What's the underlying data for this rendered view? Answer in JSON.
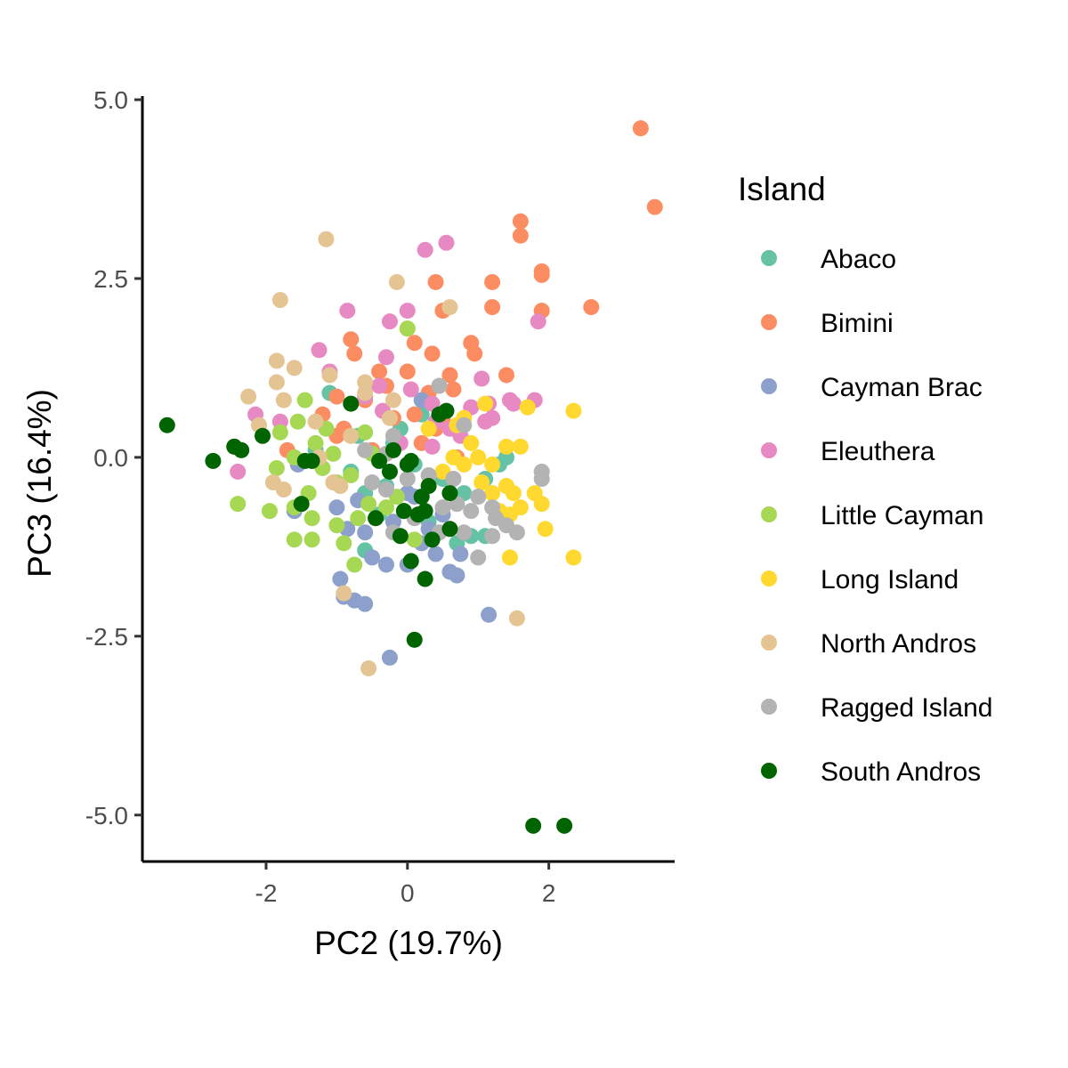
{
  "chart_data": {
    "type": "scatter",
    "title": "",
    "xlabel": "PC2 (19.7%)",
    "ylabel": "PC3 (16.4%)",
    "xlim": [
      -3.75,
      3.78
    ],
    "ylim": [
      -5.65,
      5.05
    ],
    "xticks": [
      -2,
      0,
      2
    ],
    "xtick_labels": [
      "-2",
      "0",
      "2"
    ],
    "yticks": [
      5.0,
      2.5,
      0.0,
      -2.5,
      -5.0
    ],
    "ytick_labels": [
      "5.0",
      "2.5",
      "0.0",
      "-2.5",
      "-5.0"
    ],
    "grid": false,
    "legend": {
      "title": "Island",
      "placement": "right"
    },
    "series": [
      {
        "name": "Abaco",
        "color": "#66C2A5",
        "points": [
          [
            -1.1,
            0.9
          ],
          [
            -0.7,
            0.3
          ],
          [
            -0.5,
            0.1
          ],
          [
            -0.8,
            -0.2
          ],
          [
            -0.3,
            -0.4
          ],
          [
            -0.6,
            -0.5
          ],
          [
            -0.2,
            0.2
          ],
          [
            0.1,
            -0.1
          ],
          [
            0.5,
            -0.3
          ],
          [
            0.7,
            -1.2
          ],
          [
            1.1,
            -0.3
          ],
          [
            1.3,
            -0.1
          ],
          [
            1.4,
            0.0
          ],
          [
            0.9,
            -1.1
          ],
          [
            -0.9,
            0.4
          ],
          [
            -0.4,
            -0.8
          ],
          [
            0.3,
            -0.9
          ],
          [
            -1.3,
            0.1
          ],
          [
            1.1,
            -1.1
          ],
          [
            0.8,
            -0.5
          ],
          [
            -0.1,
            0.4
          ],
          [
            -0.6,
            -1.3
          ],
          [
            0.2,
            0.6
          ]
        ]
      },
      {
        "name": "Bimini",
        "color": "#FC8D62",
        "points": [
          [
            3.3,
            4.6
          ],
          [
            3.5,
            3.5
          ],
          [
            1.6,
            3.3
          ],
          [
            1.6,
            3.1
          ],
          [
            1.9,
            2.6
          ],
          [
            1.9,
            2.55
          ],
          [
            1.2,
            2.45
          ],
          [
            0.4,
            2.45
          ],
          [
            2.6,
            2.1
          ],
          [
            1.2,
            2.1
          ],
          [
            1.9,
            2.05
          ],
          [
            0.5,
            2.05
          ],
          [
            0.0,
            1.8
          ],
          [
            -0.8,
            1.65
          ],
          [
            -0.75,
            1.45
          ],
          [
            0.1,
            1.6
          ],
          [
            0.9,
            1.6
          ],
          [
            0.35,
            1.45
          ],
          [
            0.95,
            1.45
          ],
          [
            -0.4,
            1.2
          ],
          [
            0.0,
            1.2
          ],
          [
            0.6,
            1.15
          ],
          [
            1.4,
            1.15
          ],
          [
            -0.3,
            1.0
          ],
          [
            0.65,
            0.95
          ],
          [
            0.3,
            0.9
          ],
          [
            -0.6,
            0.8
          ],
          [
            -1.2,
            0.6
          ],
          [
            0.1,
            0.6
          ],
          [
            0.5,
            0.55
          ],
          [
            -0.9,
            0.4
          ],
          [
            -1.0,
            0.3
          ],
          [
            0.2,
            0.2
          ],
          [
            -0.5,
            0.1
          ],
          [
            -2.45,
            0.15
          ],
          [
            -1.7,
            0.1
          ],
          [
            0.7,
            0.0
          ],
          [
            -1.0,
            0.85
          ],
          [
            0.4,
            0.4
          ],
          [
            -0.2,
            0.55
          ]
        ]
      },
      {
        "name": "Cayman Brac",
        "color": "#8DA0CB",
        "points": [
          [
            -1.6,
            -0.75
          ],
          [
            -1.55,
            -0.1
          ],
          [
            -0.95,
            -1.7
          ],
          [
            -0.9,
            -1.95
          ],
          [
            -0.75,
            -2.0
          ],
          [
            -0.6,
            -2.05
          ],
          [
            -0.25,
            -2.8
          ],
          [
            1.15,
            -2.2
          ],
          [
            -0.3,
            -1.5
          ],
          [
            0.0,
            -1.5
          ],
          [
            0.4,
            -1.35
          ],
          [
            0.7,
            -1.65
          ],
          [
            0.75,
            -1.35
          ],
          [
            -0.6,
            -1.05
          ],
          [
            -0.2,
            -0.9
          ],
          [
            0.3,
            -1.0
          ],
          [
            -0.7,
            -0.6
          ],
          [
            0.0,
            -0.5
          ],
          [
            0.5,
            -0.8
          ],
          [
            -0.5,
            -1.4
          ],
          [
            0.2,
            -1.2
          ],
          [
            -1.0,
            -0.7
          ],
          [
            0.2,
            0.8
          ],
          [
            0.6,
            -1.6
          ],
          [
            -0.85,
            -1.0
          ],
          [
            0.1,
            -0.55
          ]
        ]
      },
      {
        "name": "Eleuthera",
        "color": "#E78AC3",
        "points": [
          [
            0.25,
            2.9
          ],
          [
            0.55,
            3.0
          ],
          [
            -0.85,
            2.05
          ],
          [
            0.0,
            2.05
          ],
          [
            -0.25,
            1.9
          ],
          [
            1.85,
            1.9
          ],
          [
            -1.25,
            1.5
          ],
          [
            -0.3,
            1.4
          ],
          [
            -1.1,
            1.2
          ],
          [
            -0.4,
            1.0
          ],
          [
            0.05,
            0.95
          ],
          [
            1.05,
            1.1
          ],
          [
            -0.6,
            0.85
          ],
          [
            0.35,
            0.75
          ],
          [
            0.9,
            0.7
          ],
          [
            1.15,
            0.75
          ],
          [
            1.45,
            0.8
          ],
          [
            1.5,
            0.75
          ],
          [
            1.8,
            0.8
          ],
          [
            -2.15,
            0.6
          ],
          [
            -1.8,
            0.5
          ],
          [
            0.4,
            0.5
          ],
          [
            0.6,
            0.4
          ],
          [
            -0.1,
            0.2
          ],
          [
            0.35,
            0.15
          ],
          [
            -2.4,
            -0.2
          ],
          [
            1.1,
            0.5
          ],
          [
            -0.35,
            0.65
          ],
          [
            0.75,
            0.3
          ],
          [
            1.2,
            0.55
          ]
        ]
      },
      {
        "name": "Little Cayman",
        "color": "#A6D854",
        "points": [
          [
            0.0,
            1.8
          ],
          [
            -1.45,
            0.8
          ],
          [
            -1.55,
            0.5
          ],
          [
            -1.8,
            0.35
          ],
          [
            -1.15,
            0.4
          ],
          [
            -0.6,
            0.35
          ],
          [
            -1.3,
            0.2
          ],
          [
            -1.6,
            0.0
          ],
          [
            -1.85,
            -0.15
          ],
          [
            -1.4,
            -0.5
          ],
          [
            -1.0,
            -0.35
          ],
          [
            -0.8,
            -0.25
          ],
          [
            -2.4,
            -0.65
          ],
          [
            -1.95,
            -0.75
          ],
          [
            -1.6,
            -0.7
          ],
          [
            -1.35,
            -0.85
          ],
          [
            -1.0,
            -0.95
          ],
          [
            -0.7,
            -0.85
          ],
          [
            -0.55,
            -0.65
          ],
          [
            -1.6,
            -1.15
          ],
          [
            -1.35,
            -1.15
          ],
          [
            -0.9,
            -1.2
          ],
          [
            -0.75,
            -1.5
          ],
          [
            0.1,
            -1.15
          ],
          [
            -0.3,
            -0.7
          ],
          [
            -1.2,
            -0.15
          ],
          [
            -0.5,
            0.05
          ],
          [
            -0.15,
            -0.55
          ],
          [
            -1.05,
            0.05
          ]
        ]
      },
      {
        "name": "Long Island",
        "color": "#FFD92F",
        "points": [
          [
            2.35,
            0.65
          ],
          [
            1.7,
            0.7
          ],
          [
            1.1,
            0.75
          ],
          [
            0.8,
            0.55
          ],
          [
            0.7,
            0.45
          ],
          [
            0.9,
            0.2
          ],
          [
            1.0,
            0.0
          ],
          [
            0.8,
            -0.1
          ],
          [
            1.2,
            -0.1
          ],
          [
            1.4,
            0.15
          ],
          [
            1.6,
            0.15
          ],
          [
            1.9,
            -0.2
          ],
          [
            1.4,
            -0.4
          ],
          [
            1.5,
            -0.5
          ],
          [
            1.8,
            -0.5
          ],
          [
            1.9,
            -0.65
          ],
          [
            1.45,
            -0.8
          ],
          [
            1.6,
            -0.7
          ],
          [
            1.2,
            -0.5
          ],
          [
            1.95,
            -1.0
          ],
          [
            1.45,
            -1.4
          ],
          [
            2.35,
            -1.4
          ],
          [
            0.3,
            0.4
          ],
          [
            0.5,
            -0.2
          ],
          [
            0.65,
            0.0
          ],
          [
            1.05,
            -0.35
          ],
          [
            1.3,
            -0.75
          ]
        ]
      },
      {
        "name": "North Andros",
        "color": "#E5C494",
        "points": [
          [
            -1.15,
            3.05
          ],
          [
            -0.15,
            2.45
          ],
          [
            0.6,
            2.1
          ],
          [
            -1.8,
            2.2
          ],
          [
            -1.85,
            1.35
          ],
          [
            -1.6,
            1.25
          ],
          [
            -1.85,
            1.05
          ],
          [
            -1.1,
            1.15
          ],
          [
            -1.75,
            0.8
          ],
          [
            -2.25,
            0.85
          ],
          [
            -0.6,
            1.05
          ],
          [
            -0.6,
            0.9
          ],
          [
            -0.2,
            0.8
          ],
          [
            -1.3,
            0.5
          ],
          [
            -2.1,
            0.45
          ],
          [
            -1.9,
            -0.35
          ],
          [
            -1.75,
            -0.45
          ],
          [
            -1.05,
            -0.35
          ],
          [
            -0.95,
            -0.4
          ],
          [
            -1.25,
            0.0
          ],
          [
            1.55,
            -2.25
          ],
          [
            -0.55,
            -2.95
          ],
          [
            -0.9,
            -1.9
          ],
          [
            -0.8,
            0.3
          ],
          [
            -0.25,
            0.55
          ]
        ]
      },
      {
        "name": "Ragged Island",
        "color": "#B3B3B3",
        "points": [
          [
            0.45,
            1.0
          ],
          [
            0.8,
            0.45
          ],
          [
            -0.6,
            0.1
          ],
          [
            -0.3,
            0.05
          ],
          [
            -0.2,
            0.3
          ],
          [
            0.0,
            -0.3
          ],
          [
            -0.5,
            -0.35
          ],
          [
            -0.3,
            -0.45
          ],
          [
            0.2,
            -0.55
          ],
          [
            0.5,
            -0.7
          ],
          [
            0.7,
            -0.65
          ],
          [
            0.9,
            -0.75
          ],
          [
            1.2,
            -0.7
          ],
          [
            1.4,
            -0.95
          ],
          [
            1.25,
            -0.85
          ],
          [
            1.9,
            -0.3
          ],
          [
            1.2,
            -1.1
          ],
          [
            1.0,
            -1.4
          ],
          [
            1.9,
            -0.2
          ],
          [
            0.1,
            -0.85
          ],
          [
            -0.2,
            -1.05
          ],
          [
            0.3,
            -0.25
          ],
          [
            0.65,
            -0.3
          ],
          [
            1.0,
            -0.55
          ],
          [
            1.55,
            -1.05
          ],
          [
            0.8,
            -1.05
          ],
          [
            0.45,
            -1.05
          ]
        ]
      },
      {
        "name": "South Andros",
        "color": "#006400",
        "points": [
          [
            -3.4,
            0.45
          ],
          [
            -2.45,
            0.15
          ],
          [
            -2.35,
            0.1
          ],
          [
            -2.75,
            -0.05
          ],
          [
            -2.05,
            0.3
          ],
          [
            -1.45,
            -0.05
          ],
          [
            -1.35,
            -0.05
          ],
          [
            -1.5,
            -0.65
          ],
          [
            -0.8,
            0.75
          ],
          [
            -0.4,
            -0.05
          ],
          [
            -0.2,
            0.1
          ],
          [
            -0.25,
            -0.2
          ],
          [
            0.0,
            -0.1
          ],
          [
            0.05,
            -0.05
          ],
          [
            0.2,
            -0.55
          ],
          [
            0.3,
            -0.4
          ],
          [
            0.25,
            -0.75
          ],
          [
            0.15,
            -0.8
          ],
          [
            0.45,
            0.6
          ],
          [
            0.55,
            0.65
          ],
          [
            0.6,
            -0.5
          ],
          [
            0.6,
            -1.0
          ],
          [
            0.35,
            -1.15
          ],
          [
            0.05,
            -1.45
          ],
          [
            0.25,
            -1.7
          ],
          [
            -0.1,
            -1.1
          ],
          [
            0.1,
            -2.55
          ],
          [
            -0.45,
            -0.85
          ],
          [
            -0.05,
            -0.75
          ],
          [
            1.78,
            -5.15
          ],
          [
            2.22,
            -5.15
          ]
        ]
      }
    ]
  }
}
